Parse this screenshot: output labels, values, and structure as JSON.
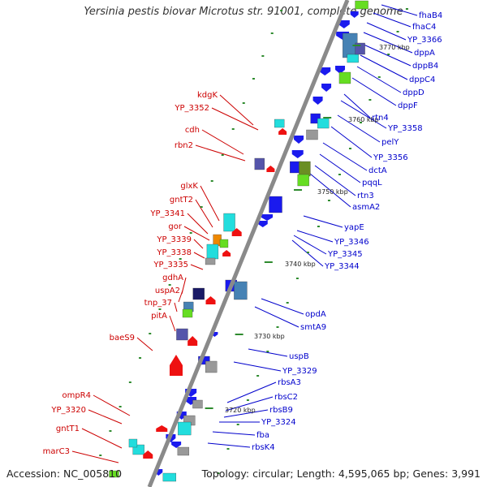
{
  "title": "Yersinia pestis biovar Microtus str. 91001, complete genome",
  "accession": "Accession: NC_005810",
  "topology": "Topology: circular; Length: 4,595,065 bp; Genes: 3,991",
  "ticks": [
    "3770 kbp",
    "3760 kbp",
    "3750 kbp",
    "3740 kbp",
    "3730 kbp",
    "3720 kbp"
  ],
  "left_labels": [
    "kdgK",
    "YP_3352",
    "cdh",
    "rbn2",
    "glxK",
    "gntT2",
    "YP_3341",
    "gor",
    "YP_3339",
    "YP_3338",
    "YP_3335",
    "gdhA",
    "uspA2",
    "tnp_37",
    "pitA",
    "baeS9",
    "ompR4",
    "YP_3320",
    "gntT1",
    "marC3"
  ],
  "right_labels": [
    "fhaB4",
    "fhaC4",
    "YP_3366",
    "dppA",
    "dppB4",
    "dppC4",
    "dppD",
    "dppF",
    "rtn4",
    "YP_3358",
    "pelY",
    "YP_3356",
    "dctA",
    "pqqL",
    "rtn3",
    "asmA2",
    "yapE",
    "YP_3346",
    "YP_3345",
    "YP_3344",
    "opdA",
    "smtA9",
    "uspB",
    "YP_3329",
    "rbsA3",
    "rbsC2",
    "rbsB9",
    "YP_3324",
    "fba",
    "rbsK4"
  ],
  "colors": {
    "left_label": "#cc0000",
    "right_label": "#0000cc",
    "axis": "#8a8a8a",
    "tick": "#2e8b2e",
    "gene_blue": "#1a1aee",
    "gene_red": "#ee1111",
    "gene_cyan": "#22dddd",
    "gene_navy": "#1a1a66",
    "gene_steel": "#4682b4",
    "gene_slate": "#5555aa",
    "gene_olive": "#6b8e23",
    "gene_lime": "#66dd22",
    "gene_gray": "#999999",
    "gene_orange": "#ee8800"
  }
}
